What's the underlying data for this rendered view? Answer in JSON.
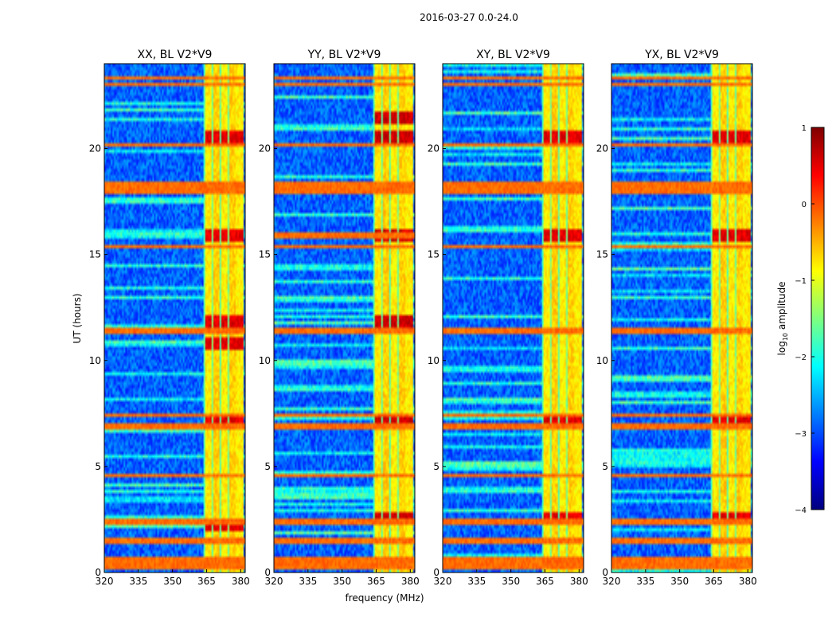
{
  "suptitle": "2016-03-27 0.0-24.0",
  "chart_data": {
    "type": "heatmap",
    "xlabel": "frequency (MHz)",
    "ylabel": "UT (hours)",
    "xlim": [
      320,
      382
    ],
    "ylim": [
      0,
      24
    ],
    "xticks": [
      320,
      335,
      350,
      365,
      380
    ],
    "yticks": [
      0,
      5,
      10,
      15,
      20
    ],
    "colorbar": {
      "label": "log10 amplitude",
      "label_main": "log",
      "label_sub": "10",
      "label_tail": " amplitude",
      "range": [
        -4,
        1
      ],
      "ticks": [
        1,
        0,
        -1,
        -2,
        -3,
        -4
      ],
      "tick_labels": [
        "1",
        "0",
        "−1",
        "−2",
        "−3",
        "−4"
      ],
      "colormap": [
        "#00007f",
        "#0000ff",
        "#007fff",
        "#00ffff",
        "#7fff7f",
        "#ffff00",
        "#ff7f00",
        "#ff0000",
        "#7f0000"
      ]
    },
    "panels": [
      {
        "title": "XX, BL V2*V9",
        "features": {
          "base_level": -2.9,
          "rfi_band_mhz": [
            364,
            381
          ],
          "rfi_band_level": -0.8,
          "strong_times_h": [
            2.3,
            7.2,
            10.8,
            11.8,
            15.9,
            20.6
          ],
          "strong_level": 0.3,
          "horizontal_rfi_times_h": [
            0.3,
            0.6,
            1.5,
            2.4,
            4.6,
            6.9,
            7.4,
            11.4,
            15.4,
            18.0,
            18.3,
            20.2,
            23.0,
            23.3
          ]
        }
      },
      {
        "title": "YY, BL V2*V9",
        "features": {
          "base_level": -2.9,
          "rfi_band_mhz": [
            364,
            381
          ],
          "rfi_band_level": -0.8,
          "strong_times_h": [
            2.5,
            7.2,
            11.8,
            15.9,
            20.6,
            21.5
          ],
          "strong_level": 0.4,
          "horizontal_rfi_times_h": [
            0.3,
            0.6,
            1.5,
            2.4,
            4.6,
            6.9,
            7.4,
            11.4,
            15.4,
            15.9,
            18.0,
            18.3,
            20.2,
            23.0,
            23.3
          ]
        }
      },
      {
        "title": "XY, BL V2*V9",
        "features": {
          "base_level": -2.9,
          "rfi_band_mhz": [
            364,
            381
          ],
          "rfi_band_level": -0.8,
          "strong_times_h": [
            2.5,
            7.2,
            15.9,
            20.6
          ],
          "strong_level": 0.3,
          "horizontal_rfi_times_h": [
            0.3,
            0.6,
            1.5,
            2.4,
            4.6,
            6.9,
            7.4,
            11.4,
            15.4,
            18.0,
            18.3,
            20.2,
            23.0,
            23.3
          ]
        }
      },
      {
        "title": "YX, BL V2*V9",
        "features": {
          "base_level": -2.9,
          "rfi_band_mhz": [
            364,
            381
          ],
          "rfi_band_level": -0.8,
          "strong_times_h": [
            2.5,
            7.2,
            15.9,
            20.6
          ],
          "strong_level": 0.3,
          "horizontal_rfi_times_h": [
            0.3,
            0.6,
            1.5,
            2.4,
            4.6,
            6.9,
            7.4,
            11.4,
            15.4,
            18.0,
            18.3,
            20.2,
            23.0,
            23.3
          ]
        }
      }
    ]
  }
}
